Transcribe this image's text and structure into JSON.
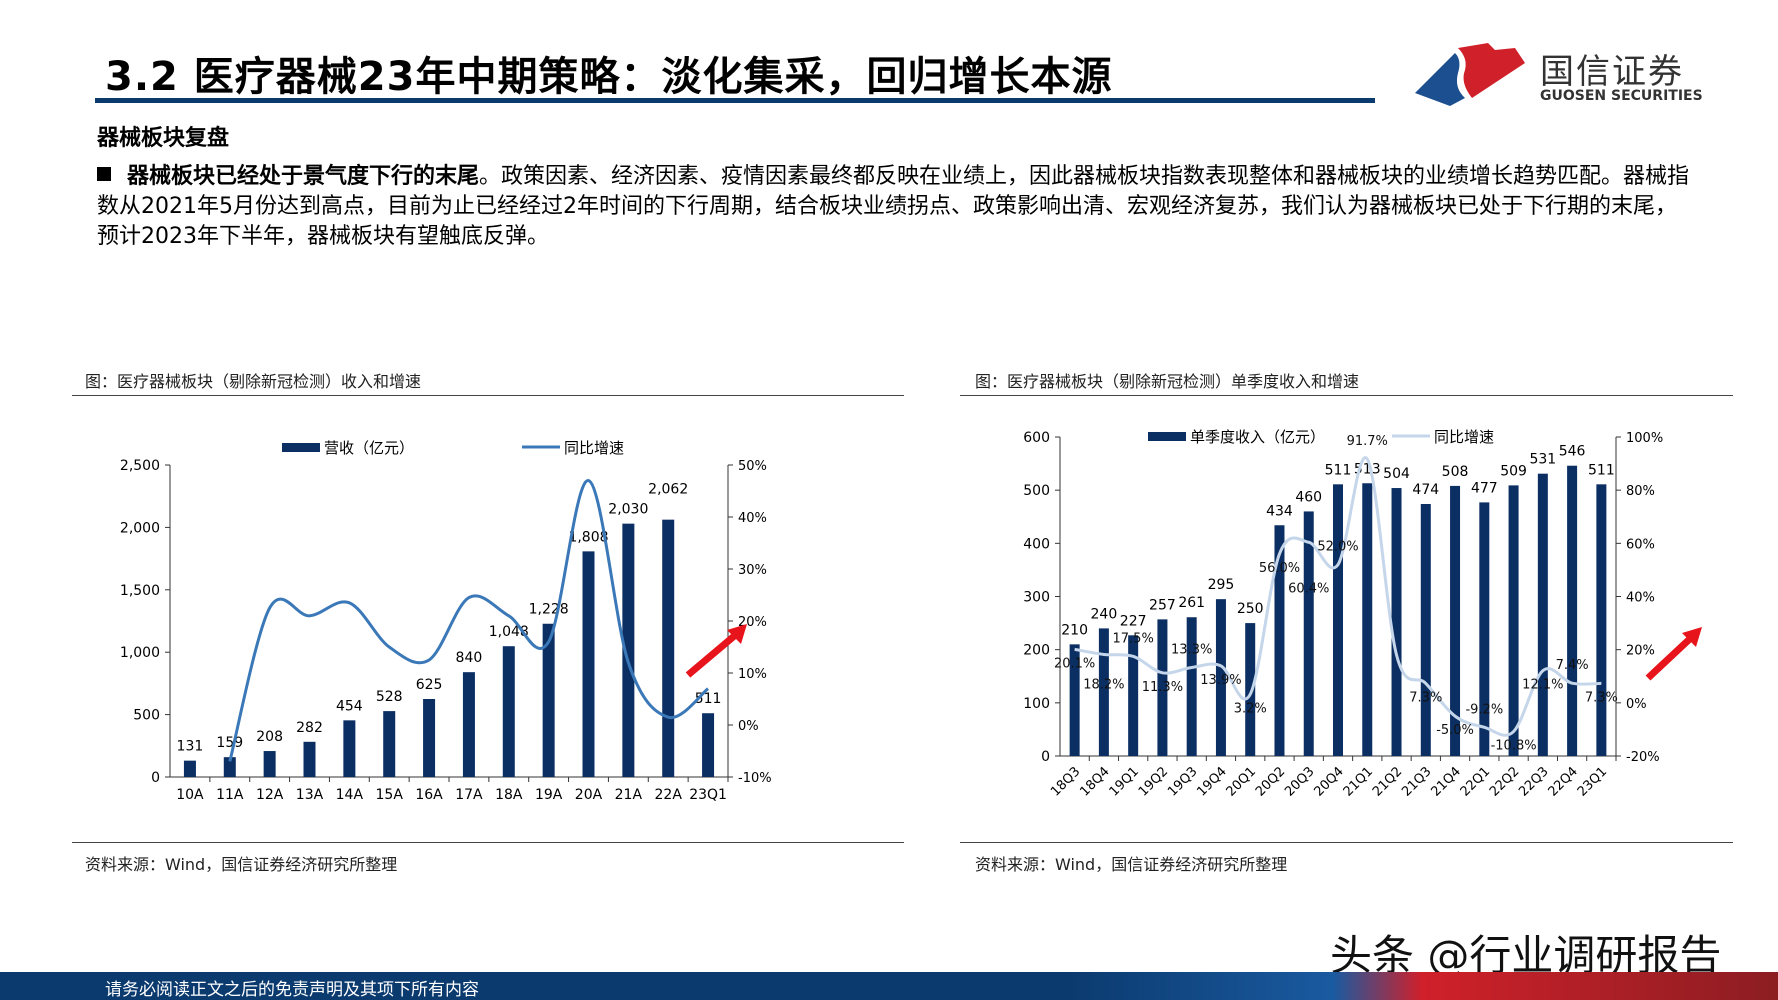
{
  "header": {
    "title": "3.2 医疗器械23年中期策略：淡化集采，回归增长本源",
    "logo_cn": "国信证券",
    "logo_en": "GUOSEN SECURITIES",
    "logo_colors": {
      "blue": "#1c4f8f",
      "red": "#d0202a"
    }
  },
  "section_title": "器械板块复盘",
  "paragraph": {
    "bold": "器械板块已经处于景气度下行的末尾",
    "text": "。政策因素、经济因素、疫情因素最终都反映在业绩上，因此器械板块指数表现整体和器械板块的业绩增长趋势匹配。器械指数从2021年5月份达到高点，目前为止已经经过2年时间的下行周期，结合板块业绩拐点、政策影响出清、宏观经济复苏，我们认为器械板块已处于下行期的末尾，预计2023年下半年，器械板块有望触底反弹。"
  },
  "left_figure": {
    "caption": "图：医疗器械板块（剔除新冠检测）收入和增速",
    "source": "资料来源：Wind，国信证券经济研究所整理"
  },
  "right_figure": {
    "caption": "图：医疗器械板块（剔除新冠检测）单季度收入和增速",
    "source": "资料来源：Wind，国信证券经济研究所整理"
  },
  "footer": {
    "disclaimer": "请务必阅读正文之后的免责声明及其项下所有内容",
    "watermark": "头条 @行业调研报告"
  },
  "chart_data": [
    {
      "type": "bar+line",
      "categories": [
        "10A",
        "11A",
        "12A",
        "13A",
        "14A",
        "15A",
        "16A",
        "17A",
        "18A",
        "19A",
        "20A",
        "21A",
        "22A",
        "23Q1"
      ],
      "series": [
        {
          "name": "营收（亿元）",
          "type": "bar",
          "axis": "left",
          "color": "#0b2f63",
          "values": [
            131,
            159,
            208,
            282,
            454,
            528,
            625,
            840,
            1048,
            1228,
            1808,
            2030,
            2062,
            511
          ],
          "labels": [
            "131",
            "159",
            "208",
            "282",
            "454",
            "528",
            "625",
            "840",
            "1,048",
            "1,228",
            "1,808",
            "2,030",
            "2,062",
            "511"
          ]
        },
        {
          "name": "同比增速",
          "type": "line",
          "axis": "right",
          "color": "#3a78b8",
          "values": [
            null,
            -7,
            22.5,
            21,
            23.5,
            15,
            12.5,
            24.5,
            21,
            16,
            47,
            12,
            1.5,
            7
          ]
        }
      ],
      "y_left": {
        "range": [
          0,
          2500
        ],
        "ticks": [
          "0",
          "500",
          "1,000",
          "1,500",
          "2,000",
          "2,500"
        ]
      },
      "y_right": {
        "range": [
          -10,
          50
        ],
        "ticks": [
          "-10%",
          "0%",
          "10%",
          "20%",
          "30%",
          "40%",
          "50%"
        ]
      },
      "annotation": "red-up-arrow"
    },
    {
      "type": "bar+line",
      "categories": [
        "18Q3",
        "18Q4",
        "19Q1",
        "19Q2",
        "19Q3",
        "19Q4",
        "20Q1",
        "20Q2",
        "20Q3",
        "20Q4",
        "21Q1",
        "21Q2",
        "21Q3",
        "21Q4",
        "22Q1",
        "22Q2",
        "22Q3",
        "22Q4",
        "23Q1"
      ],
      "series": [
        {
          "name": "单季度收入（亿元）",
          "type": "bar",
          "axis": "left",
          "color": "#0b2f63",
          "values": [
            210,
            240,
            227,
            257,
            261,
            295,
            250,
            434,
            460,
            511,
            513,
            504,
            474,
            508,
            477,
            509,
            531,
            546,
            511
          ]
        },
        {
          "name": "同比增速",
          "type": "line",
          "axis": "right",
          "color": "#c5d6ea",
          "values": [
            20.1,
            18.2,
            17.5,
            11.3,
            13.3,
            13.9,
            3.2,
            56.0,
            60.4,
            52.0,
            91.7,
            18,
            7.3,
            -5.0,
            -9.2,
            -10.8,
            12.1,
            7.4,
            7.3
          ],
          "labels": [
            "20.1%",
            "18.2%",
            "17.5%",
            "11.3%",
            "13.3%",
            "13.9%",
            "3.2%",
            "56.0%",
            "60.4%",
            "52.0%",
            "91.7%",
            "",
            "7.3%",
            "-5.0%",
            "-9.2%",
            "-10.8%",
            "12.1%",
            "7.4%",
            "7.3%"
          ]
        }
      ],
      "y_left": {
        "range": [
          0,
          600
        ],
        "ticks": [
          "0",
          "100",
          "200",
          "300",
          "400",
          "500",
          "600"
        ]
      },
      "y_right": {
        "range": [
          -20,
          100
        ],
        "ticks": [
          "-20%",
          "0%",
          "20%",
          "40%",
          "60%",
          "80%",
          "100%"
        ]
      },
      "annotation": "red-up-arrow"
    }
  ]
}
